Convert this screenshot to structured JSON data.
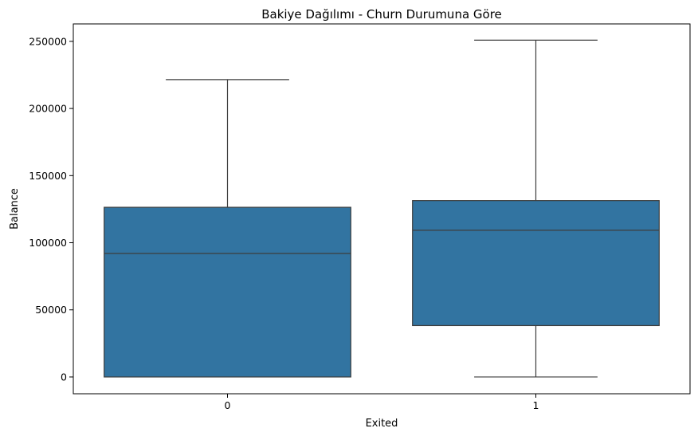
{
  "chart_data": {
    "type": "boxplot",
    "title": "Bakiye Dağılımı - Churn Durumuna Göre",
    "xlabel": "Exited",
    "ylabel": "Balance",
    "categories": [
      "0",
      "1"
    ],
    "ylim": [
      -12500,
      263000
    ],
    "yticks": [
      0,
      50000,
      100000,
      150000,
      200000,
      250000
    ],
    "ytick_labels": [
      "0",
      "50000",
      "100000",
      "150000",
      "200000",
      "250000"
    ],
    "boxes": [
      {
        "category": "0",
        "whisker_low": 0,
        "q1": 0,
        "median": 92000,
        "q3": 126400,
        "whisker_high": 221500
      },
      {
        "category": "1",
        "whisker_low": 0,
        "q1": 38300,
        "median": 109300,
        "q3": 131400,
        "whisker_high": 250900
      }
    ],
    "box_color": "#3274a1",
    "line_color": "#3d3d3d",
    "grid": false,
    "legend": "none"
  }
}
